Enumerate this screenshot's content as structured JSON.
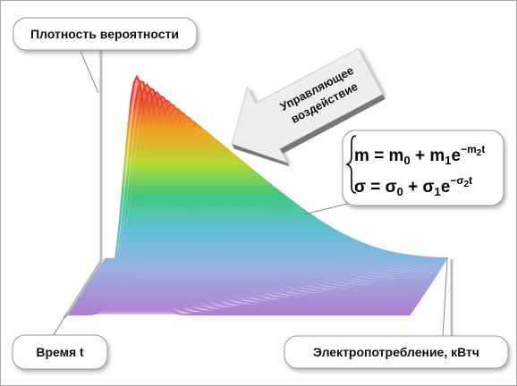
{
  "labels": {
    "density": "Плотность вероятности",
    "time": "Время t",
    "consumption": "Электропотребление, кВтч",
    "control": [
      "Управляющее",
      "воздействие"
    ]
  },
  "formulas": [
    {
      "lhs": "m",
      "rhs": [
        "= m",
        "0",
        " + m",
        "1",
        "e",
        "−m",
        "2",
        "t"
      ]
    },
    {
      "lhs": "σ",
      "rhs": [
        "= σ",
        "0",
        " + σ",
        "1",
        "e",
        "−σ",
        "2",
        "t"
      ]
    }
  ]
}
